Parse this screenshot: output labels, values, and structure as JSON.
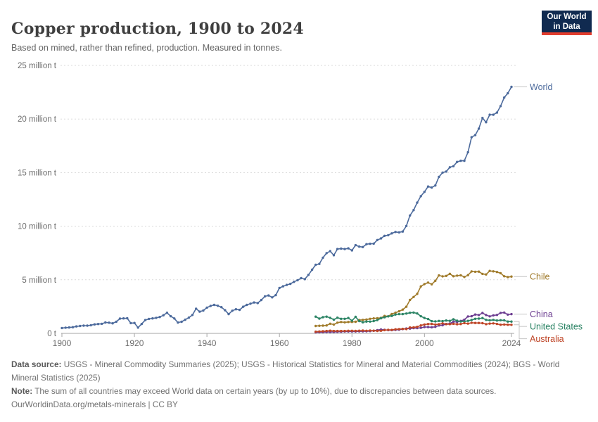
{
  "header": {
    "title": "Copper production, 1900 to 2024",
    "subtitle": "Based on mined, rather than refined, production. Measured in tonnes."
  },
  "logo": {
    "line1": "Our World",
    "line2": "in Data",
    "bg_color": "#102A50",
    "accent_color": "#E23D2E"
  },
  "footer": {
    "datasource_label": "Data source:",
    "datasource_text": " USGS - Mineral Commodity Summaries (2025); USGS - Historical Statistics for Mineral and Material Commodities (2024); BGS - World Mineral Statistics (2025)",
    "note_label": "Note:",
    "note_text": " The sum of all countries may exceed World data on certain years (by up to 10%), due to discrepancies between data sources.",
    "citation": "OurWorldinData.org/metals-minerals | CC BY"
  },
  "chart_data": {
    "type": "line",
    "title": "Copper production, 1900 to 2024",
    "unit": "million tonnes",
    "xlabel": "",
    "ylabel": "",
    "x_range": [
      1900,
      2024
    ],
    "y_range": [
      0,
      25
    ],
    "grid": "horizontal dashed",
    "legend_position": "right-edge series labels",
    "x_ticks": [
      1900,
      1920,
      1940,
      1960,
      1980,
      2000,
      2024
    ],
    "y_ticks": [
      {
        "v": 0,
        "label": "0 t"
      },
      {
        "v": 5,
        "label": "5 million t"
      },
      {
        "v": 10,
        "label": "10 million t"
      },
      {
        "v": 15,
        "label": "15 million t"
      },
      {
        "v": 20,
        "label": "20 million t"
      },
      {
        "v": 25,
        "label": "25 million t"
      }
    ],
    "series": [
      {
        "name": "World",
        "color": "#4C6A9C",
        "start_year": 1900,
        "values": [
          0.5,
          0.53,
          0.55,
          0.58,
          0.65,
          0.69,
          0.72,
          0.72,
          0.76,
          0.84,
          0.87,
          0.89,
          1.02,
          1.0,
          0.94,
          1.09,
          1.38,
          1.4,
          1.41,
          0.96,
          0.97,
          0.54,
          0.88,
          1.24,
          1.35,
          1.4,
          1.45,
          1.53,
          1.69,
          1.92,
          1.6,
          1.39,
          1.01,
          1.08,
          1.27,
          1.47,
          1.72,
          2.3,
          2.03,
          2.13,
          2.4,
          2.56,
          2.66,
          2.58,
          2.45,
          2.16,
          1.8,
          2.11,
          2.25,
          2.19,
          2.49,
          2.66,
          2.77,
          2.88,
          2.83,
          3.11,
          3.46,
          3.54,
          3.36,
          3.57,
          4.24,
          4.39,
          4.52,
          4.62,
          4.81,
          4.96,
          5.16,
          5.06,
          5.46,
          5.94,
          6.4,
          6.48,
          7.06,
          7.49,
          7.67,
          7.29,
          7.87,
          7.91,
          7.87,
          7.93,
          7.74,
          8.23,
          8.1,
          8.05,
          8.32,
          8.36,
          8.37,
          8.71,
          8.86,
          9.1,
          9.16,
          9.33,
          9.46,
          9.42,
          9.5,
          10.02,
          11.0,
          11.5,
          12.2,
          12.8,
          13.2,
          13.7,
          13.6,
          13.8,
          14.6,
          15.0,
          15.1,
          15.5,
          15.6,
          16.0,
          16.1,
          16.1,
          16.9,
          18.3,
          18.5,
          19.1,
          20.1,
          19.7,
          20.4,
          20.4,
          20.6,
          21.2,
          22.0,
          22.4,
          23.0
        ]
      },
      {
        "name": "Chile",
        "color": "#A07B2B",
        "start_year": 1970,
        "values": [
          0.69,
          0.71,
          0.72,
          0.74,
          0.9,
          0.83,
          1.0,
          1.06,
          1.03,
          1.06,
          1.07,
          1.08,
          1.24,
          1.26,
          1.29,
          1.36,
          1.4,
          1.42,
          1.45,
          1.63,
          1.59,
          1.81,
          1.93,
          2.06,
          2.22,
          2.49,
          3.12,
          3.39,
          3.69,
          4.38,
          4.6,
          4.74,
          4.58,
          4.9,
          5.41,
          5.32,
          5.36,
          5.56,
          5.33,
          5.39,
          5.42,
          5.26,
          5.43,
          5.78,
          5.75,
          5.76,
          5.55,
          5.5,
          5.83,
          5.79,
          5.73,
          5.62,
          5.33,
          5.25,
          5.3
        ]
      },
      {
        "name": "China",
        "color": "#6D3E91",
        "start_year": 1970,
        "values": [
          0.1,
          0.11,
          0.12,
          0.13,
          0.13,
          0.14,
          0.15,
          0.16,
          0.18,
          0.18,
          0.18,
          0.18,
          0.19,
          0.19,
          0.2,
          0.21,
          0.25,
          0.3,
          0.36,
          0.33,
          0.3,
          0.3,
          0.33,
          0.35,
          0.4,
          0.45,
          0.44,
          0.49,
          0.49,
          0.52,
          0.59,
          0.59,
          0.57,
          0.61,
          0.74,
          0.76,
          0.87,
          0.92,
          1.09,
          1.07,
          1.16,
          1.27,
          1.58,
          1.6,
          1.76,
          1.71,
          1.9,
          1.71,
          1.59,
          1.68,
          1.72,
          1.91,
          1.94,
          1.75,
          1.8
        ]
      },
      {
        "name": "United States",
        "color": "#2C8465",
        "start_year": 1970,
        "values": [
          1.56,
          1.38,
          1.51,
          1.56,
          1.45,
          1.28,
          1.46,
          1.36,
          1.36,
          1.44,
          1.18,
          1.54,
          1.15,
          1.04,
          1.1,
          1.1,
          1.15,
          1.24,
          1.41,
          1.5,
          1.59,
          1.63,
          1.76,
          1.8,
          1.8,
          1.85,
          1.92,
          1.94,
          1.86,
          1.6,
          1.44,
          1.34,
          1.14,
          1.12,
          1.16,
          1.14,
          1.2,
          1.17,
          1.31,
          1.18,
          1.11,
          1.11,
          1.17,
          1.25,
          1.36,
          1.38,
          1.43,
          1.26,
          1.22,
          1.26,
          1.2,
          1.23,
          1.22,
          1.1,
          1.1
        ]
      },
      {
        "name": "Australia",
        "color": "#BE4426",
        "start_year": 1970,
        "values": [
          0.16,
          0.18,
          0.2,
          0.22,
          0.25,
          0.22,
          0.22,
          0.22,
          0.22,
          0.24,
          0.24,
          0.23,
          0.25,
          0.26,
          0.24,
          0.26,
          0.25,
          0.23,
          0.24,
          0.3,
          0.33,
          0.32,
          0.38,
          0.4,
          0.42,
          0.4,
          0.55,
          0.56,
          0.61,
          0.74,
          0.83,
          0.87,
          0.88,
          0.83,
          0.85,
          0.93,
          0.86,
          0.86,
          0.89,
          0.85,
          0.87,
          0.96,
          0.91,
          0.99,
          0.97,
          0.97,
          0.95,
          0.86,
          0.91,
          0.93,
          0.88,
          0.81,
          0.83,
          0.81,
          0.8
        ]
      }
    ]
  }
}
